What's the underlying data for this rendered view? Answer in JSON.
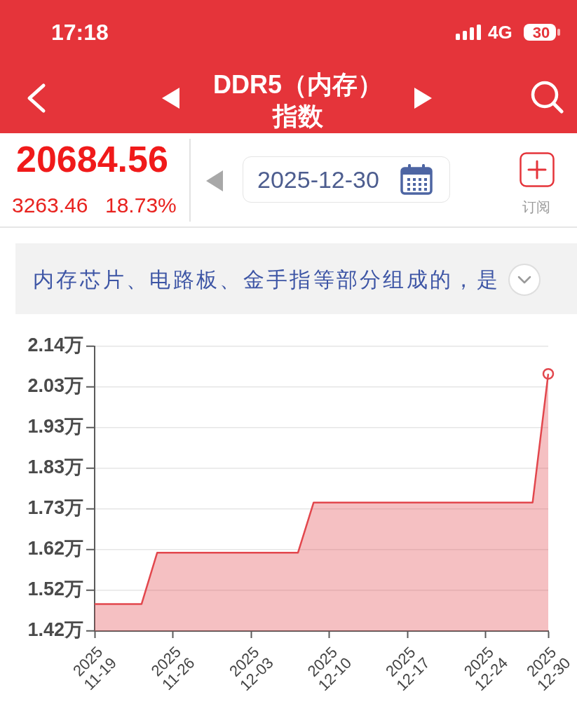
{
  "chart_data": {
    "type": "area",
    "title": "DDR5（内存）指数",
    "subtitle": "内存芯片、电路板、金手指等部分组成的，是",
    "annotations": [
      "17:18",
      "4G",
      "30",
      "20684.56",
      "3263.46",
      "18.73%",
      "2025-12-30",
      "订阅"
    ],
    "categories": [
      "2025\n11-19",
      null,
      null,
      null,
      null,
      "2025\n11-26",
      null,
      null,
      null,
      null,
      "2025\n12-03",
      null,
      null,
      null,
      null,
      "2025\n12-10",
      null,
      null,
      null,
      null,
      "2025\n12-17",
      null,
      null,
      null,
      null,
      "2025\n12-24",
      null,
      null,
      null,
      "2025\n12-30"
    ],
    "series": [
      {
        "color": "#e2474d",
        "values": [
          1.485,
          1.485,
          1.485,
          1.485,
          1.615,
          1.615,
          1.615,
          1.615,
          1.615,
          1.615,
          1.615,
          1.615,
          1.615,
          1.615,
          1.742,
          1.742,
          1.742,
          1.742,
          1.742,
          1.742,
          1.742,
          1.742,
          1.742,
          1.742,
          1.742,
          1.742,
          1.742,
          1.742,
          1.742,
          2.068
        ]
      },
      {
        "type": "scatter",
        "x": [
          "2025\n12-30"
        ],
        "values": [
          2.068
        ],
        "color": "#e2474d",
        "marker": "circle"
      }
    ],
    "ylim": [
      1.4165,
      2.1375
    ],
    "yticks": [
      {
        "value": 1.4165,
        "label": "1.42万"
      },
      {
        "value": 1.5195,
        "label": "1.52万"
      },
      {
        "value": 1.6225,
        "label": "1.62万"
      },
      {
        "value": 1.7255,
        "label": "1.73万"
      },
      {
        "value": 1.8285,
        "label": "1.83万"
      },
      {
        "value": 1.9315,
        "label": "1.93万"
      },
      {
        "value": 2.0345,
        "label": "2.03万"
      },
      {
        "value": 2.1375,
        "label": "2.14万"
      }
    ],
    "grid": "y"
  }
}
